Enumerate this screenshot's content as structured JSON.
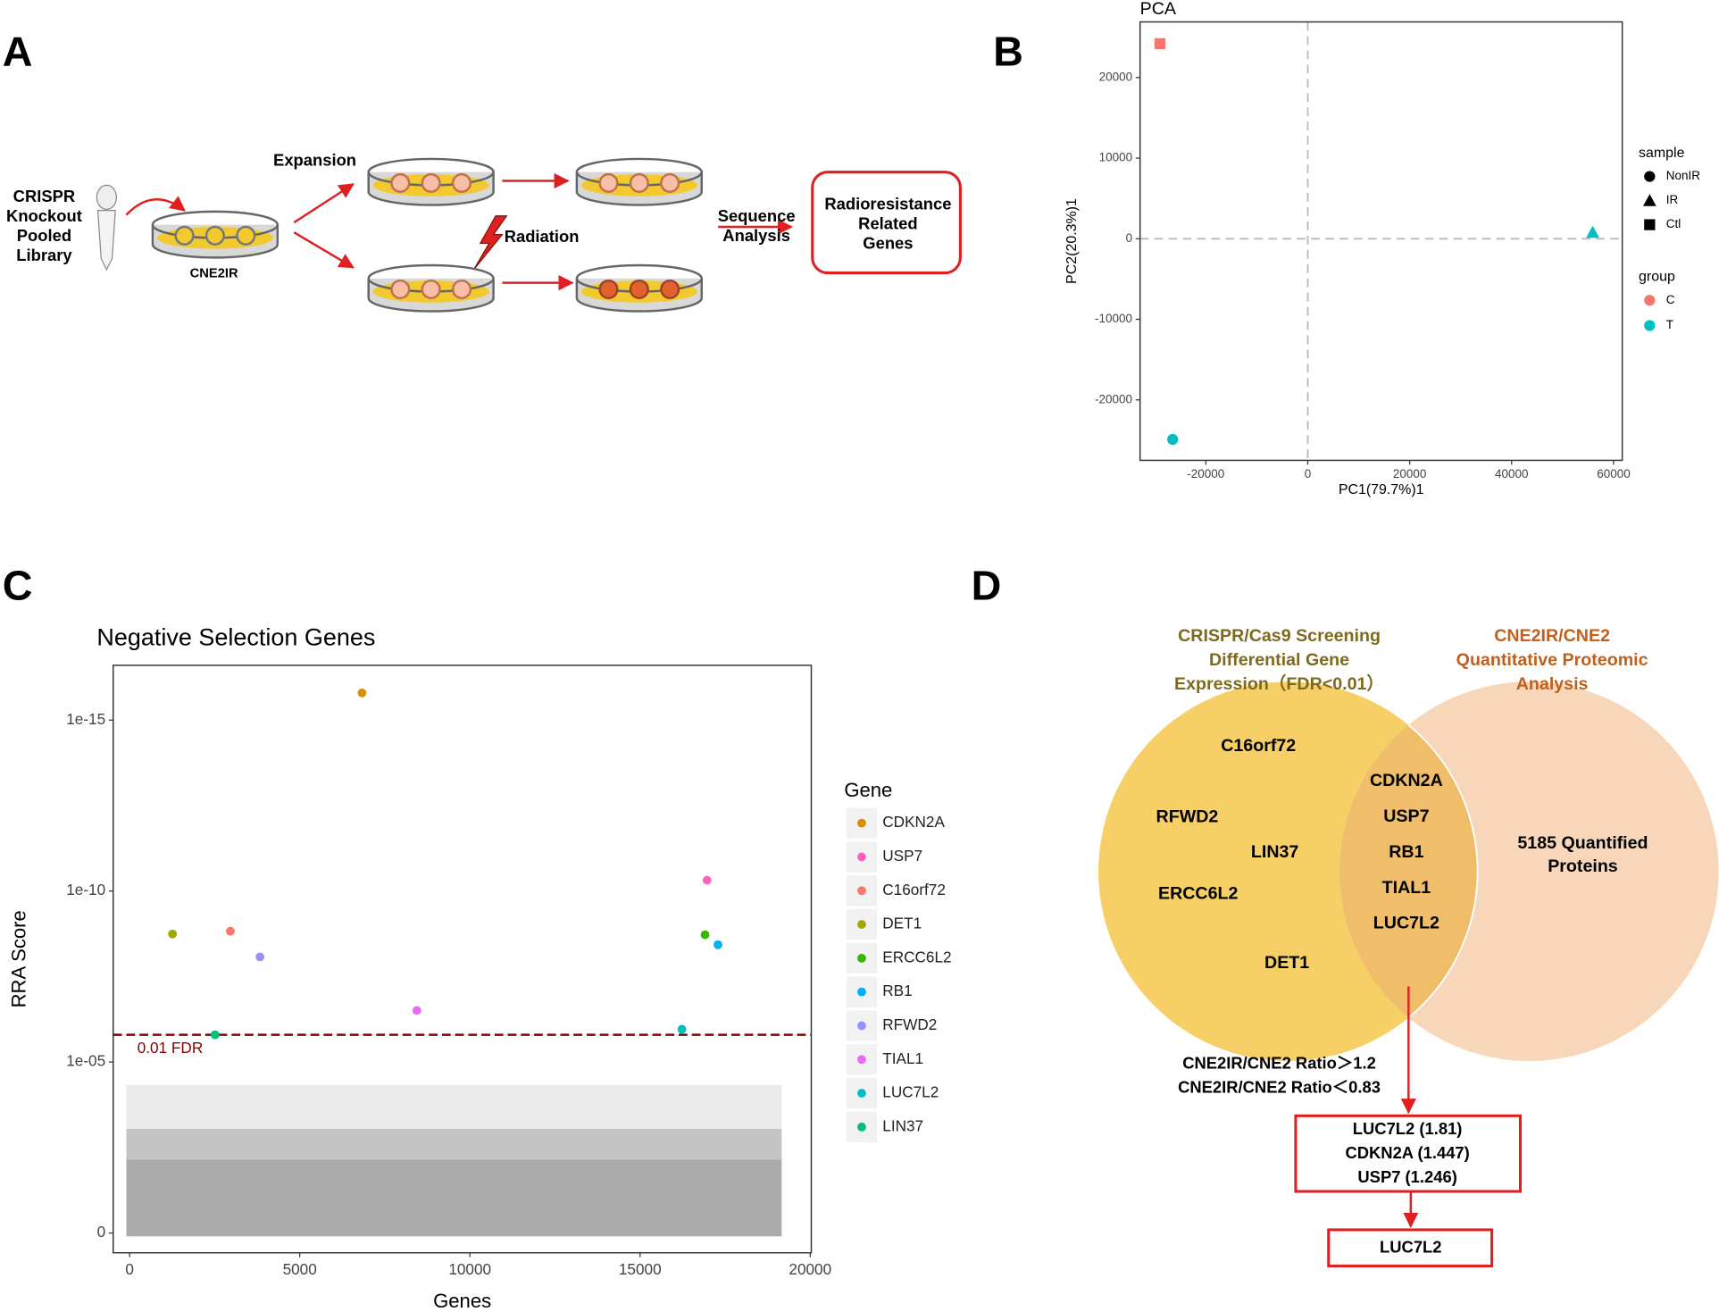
{
  "panel_labels": [
    "A",
    "B",
    "C",
    "D"
  ],
  "schematic": {
    "library": [
      "CRISPR",
      "Knockout",
      "Pooled",
      "Library"
    ],
    "cell_line": "CNE2IR",
    "expansion": "Expansion",
    "radiation": "Radiation",
    "analysis": [
      "Sequence",
      "Analysis"
    ],
    "result": [
      "Radioresistance",
      "Related",
      "Genes"
    ]
  },
  "chart_data": [
    {
      "type": "scatter",
      "title": "PCA",
      "xlabel": "PC1(79.7%)1",
      "ylabel": "PC2(20.3%)1",
      "xlim": [
        -32900,
        61700
      ],
      "ylim": [
        -27500,
        26900
      ],
      "xticks": [
        -20000,
        0,
        20000,
        40000,
        60000
      ],
      "yticks": [
        -20000,
        -10000,
        0,
        10000,
        20000
      ],
      "zero_lines": true,
      "points": {
        "x": [
          -29000,
          55900,
          -26500
        ],
        "y": [
          24200,
          800,
          -24900
        ],
        "sample": [
          "Ctl",
          "IR",
          "NonIR"
        ],
        "group": [
          "C",
          "T",
          "T"
        ]
      },
      "legends": [
        {
          "title": "sample",
          "entries": [
            "NonIR",
            "IR",
            "Ctl"
          ],
          "shapes": [
            "circle",
            "triangle",
            "square"
          ]
        },
        {
          "title": "group",
          "entries": [
            "C",
            "T"
          ],
          "colors": [
            "#F8766D",
            "#00BFC4"
          ]
        }
      ]
    },
    {
      "type": "scatter",
      "title": "Negative Selection Genes",
      "xlabel": "Genes",
      "ylabel": "RRA Score",
      "yscale": "log",
      "xlim": [
        -483,
        20032
      ],
      "ylim": [
        3.8,
        2.5e-17
      ],
      "xticks": [
        0,
        5000,
        10000,
        15000,
        20000
      ],
      "yticks": [
        {
          "value": 1,
          "label": "0"
        },
        {
          "value": 1e-05,
          "label": "1e-05"
        },
        {
          "value": 1e-10,
          "label": "1e-10"
        },
        {
          "value": 1e-15,
          "label": "1e-15"
        }
      ],
      "threshold": {
        "value": 1.6e-06,
        "label": "0.01 FDR",
        "color": "#8B0000"
      },
      "legend_title": "Gene",
      "series": [
        {
          "name": "CDKN2A",
          "color": "#D89000",
          "x": [
            6830
          ],
          "values": [
            1.6e-16
          ]
        },
        {
          "name": "USP7",
          "color": "#FF62BC",
          "x": [
            16970
          ],
          "values": [
            4.8e-11
          ]
        },
        {
          "name": "C16orf72",
          "color": "#F8766D",
          "x": [
            2960
          ],
          "values": [
            1.5e-09
          ]
        },
        {
          "name": "DET1",
          "color": "#A3A500",
          "x": [
            1260
          ],
          "values": [
            1.8e-09
          ]
        },
        {
          "name": "ERCC6L2",
          "color": "#39B600",
          "x": [
            16910
          ],
          "values": [
            1.9e-09
          ]
        },
        {
          "name": "RB1",
          "color": "#00B0F6",
          "x": [
            17290
          ],
          "values": [
            3.7e-09
          ]
        },
        {
          "name": "RFWD2",
          "color": "#9590FF",
          "x": [
            3830
          ],
          "values": [
            8.4e-09
          ]
        },
        {
          "name": "TIAL1",
          "color": "#E76BF3",
          "x": [
            8440
          ],
          "values": [
            3.1e-07
          ]
        },
        {
          "name": "LUC7L2",
          "color": "#00BFC4",
          "x": [
            16230
          ],
          "values": [
            1.1e-06
          ]
        },
        {
          "name": "LIN37",
          "color": "#00BF7D",
          "x": [
            2510
          ],
          "values": [
            1.6e-06
          ]
        }
      ]
    }
  ],
  "venn": {
    "left_title": [
      "CRISPR/Cas9 Screening",
      "Differential Gene",
      "Expression（FDR<0.01）"
    ],
    "right_title": [
      "CNE2IR/CNE2",
      "Quantitative Proteomic",
      "Analysis"
    ],
    "left_genes": [
      "C16orf72",
      "RFWD2",
      "LIN37",
      "ERCC6L2",
      "DET1"
    ],
    "overlap_genes": [
      "CDKN2A",
      "USP7",
      "RB1",
      "TIAL1",
      "LUC7L2"
    ],
    "right_text": [
      "5185 Quantified",
      "Proteins"
    ],
    "criteria": [
      "CNE2IR/CNE2 Ratio＞1.2",
      "CNE2IR/CNE2 Ratio＜0.83"
    ],
    "candidates": [
      "LUC7L2 (1.81)",
      "CDKN2A (1.447)",
      "USP7 (1.246)"
    ],
    "final": "LUC7L2"
  }
}
